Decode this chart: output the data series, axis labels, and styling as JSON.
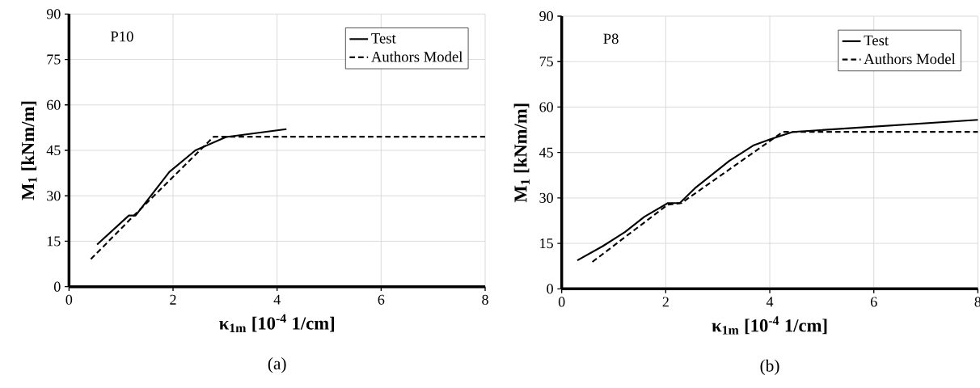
{
  "chart_data": [
    {
      "type": "line",
      "xlabel": "κ$_{1m}$ [10$^{-4}$ 1/cm]",
      "ylabel": "M$_{1}$ [kNm/m]",
      "annotations": [
        "P10",
        "(a)"
      ],
      "xlim": [
        0,
        8
      ],
      "ylim": [
        0,
        90
      ],
      "xticks": [
        0,
        2,
        4,
        6,
        8
      ],
      "yticks": [
        0,
        15,
        30,
        45,
        60,
        75,
        90
      ],
      "grid": true,
      "legend": "top right",
      "series": [
        {
          "name": "Test",
          "color": "#000000",
          "line_style": "solid",
          "x": [
            0.54,
            1.15,
            1.28,
            1.93,
            2.43,
            3.02,
            4.18
          ],
          "values": [
            13.9,
            23.5,
            23.5,
            37.9,
            45,
            49.4,
            52
          ]
        },
        {
          "name": "Authors Model",
          "color": "#000000",
          "line_style": "dashed",
          "x": [
            0.42,
            1.25,
            2.78,
            8
          ],
          "values": [
            9.1,
            23.5,
            49.5,
            49.5
          ]
        }
      ]
    },
    {
      "type": "line",
      "xlabel": "κ$_{1m}$ [10$^{-4}$ 1/cm]",
      "ylabel": "M$_{1}$ [kNm/m]",
      "annotations": [
        "P8",
        "(b)"
      ],
      "xlim": [
        0,
        8
      ],
      "ylim": [
        0,
        90
      ],
      "xticks": [
        0,
        2,
        4,
        6,
        8
      ],
      "yticks": [
        0,
        15,
        30,
        45,
        60,
        75,
        90
      ],
      "grid": true,
      "legend": "top right",
      "series": [
        {
          "name": "Test",
          "color": "#000000",
          "line_style": "solid",
          "x": [
            0.3,
            0.79,
            1.22,
            1.59,
            2.04,
            2.27,
            2.56,
            3.22,
            3.68,
            4.01,
            4.44,
            8
          ],
          "values": [
            9.4,
            14.1,
            18.8,
            23.8,
            28.3,
            28.3,
            33.2,
            42.2,
            47.3,
            49.4,
            51.8,
            55.8
          ]
        },
        {
          "name": "Authors Model",
          "color": "#000000",
          "line_style": "dashed",
          "x": [
            0.59,
            2.04,
            2.3,
            4.25,
            8
          ],
          "values": [
            8.9,
            27.8,
            28.3,
            51.8,
            51.8
          ]
        }
      ]
    }
  ]
}
